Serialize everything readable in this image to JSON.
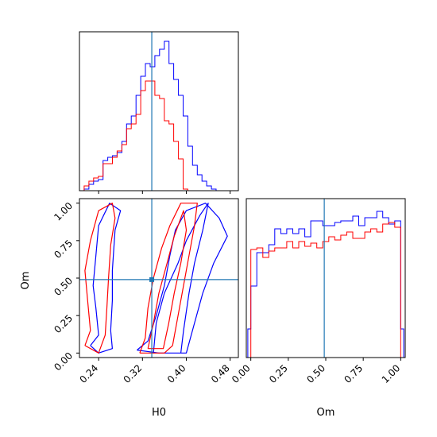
{
  "figure": {
    "type": "corner_plot",
    "parameters": [
      "H0",
      "Om"
    ],
    "truth_color": "#1f77b4",
    "series_colors": [
      "#0000ff",
      "#ff0000"
    ]
  },
  "chart_data": [
    {
      "panel": "H0-histogram",
      "type": "histogram",
      "xlabel": "",
      "xlim": [
        0.205,
        0.495
      ],
      "ylim": [
        0,
        1.0
      ],
      "bin_edges": [
        0.205,
        0.2136,
        0.2222,
        0.2308,
        0.2394,
        0.248,
        0.2566,
        0.2652,
        0.2738,
        0.2824,
        0.291,
        0.2996,
        0.3082,
        0.3168,
        0.3254,
        0.334,
        0.3426,
        0.3512,
        0.3598,
        0.3684,
        0.377,
        0.3856,
        0.3942,
        0.4028,
        0.4114,
        0.42,
        0.4286,
        0.4372,
        0.4458,
        0.4544,
        0.463,
        0.4716,
        0.4802,
        0.4888,
        0.495
      ],
      "vline": 0.337,
      "series": [
        {
          "color": "#0000ff",
          "values": [
            0.0,
            0.01,
            0.04,
            0.06,
            0.07,
            0.19,
            0.21,
            0.22,
            0.24,
            0.31,
            0.42,
            0.47,
            0.6,
            0.72,
            0.8,
            0.78,
            0.85,
            0.89,
            0.94,
            0.8,
            0.7,
            0.6,
            0.47,
            0.28,
            0.16,
            0.1,
            0.06,
            0.03,
            0.01,
            0.0,
            0.0,
            0.0,
            0.0,
            0.0
          ]
        },
        {
          "color": "#ff0000",
          "values": [
            0.0,
            0.03,
            0.06,
            0.08,
            0.09,
            0.17,
            0.17,
            0.21,
            0.25,
            0.29,
            0.39,
            0.42,
            0.48,
            0.63,
            0.69,
            0.69,
            0.6,
            0.58,
            0.44,
            0.42,
            0.31,
            0.2,
            0.01,
            0.0,
            0.0,
            0.0,
            0.0,
            0.0,
            0.0,
            0.0,
            0.0,
            0.0,
            0.0,
            0.0
          ]
        }
      ]
    },
    {
      "panel": "H0-Om-contours",
      "type": "contour",
      "xlabel": "H0",
      "ylabel": "Om",
      "xlim": [
        0.205,
        0.495
      ],
      "ylim": [
        -0.03,
        1.03
      ],
      "xticks": [
        "0.24",
        "0.32",
        "0.40",
        "0.48"
      ],
      "yticks": [
        "0.00",
        "0.25",
        "0.50",
        "0.75",
        "1.00"
      ],
      "truth": {
        "H0": 0.337,
        "Om": 0.49
      },
      "series": [
        {
          "color": "#0000ff",
          "contours": [
            [
              [
                0.225,
                0.05
              ],
              [
                0.24,
                0.12
              ],
              [
                0.235,
                0.3
              ],
              [
                0.23,
                0.45
              ],
              [
                0.235,
                0.65
              ],
              [
                0.24,
                0.85
              ],
              [
                0.26,
                1.0
              ],
              [
                0.28,
                0.95
              ],
              [
                0.27,
                0.82
              ],
              [
                0.265,
                0.55
              ],
              [
                0.265,
                0.35
              ],
              [
                0.262,
                0.15
              ],
              [
                0.265,
                0.03
              ],
              [
                0.24,
                0.0
              ],
              [
                0.225,
                0.05
              ]
            ],
            [
              [
                0.31,
                0.02
              ],
              [
                0.33,
                0.08
              ],
              [
                0.345,
                0.25
              ],
              [
                0.36,
                0.45
              ],
              [
                0.37,
                0.65
              ],
              [
                0.38,
                0.82
              ],
              [
                0.4,
                0.95
              ],
              [
                0.435,
                1.0
              ],
              [
                0.46,
                0.9
              ],
              [
                0.475,
                0.78
              ],
              [
                0.45,
                0.6
              ],
              [
                0.43,
                0.4
              ],
              [
                0.415,
                0.2
              ],
              [
                0.4,
                0.0
              ],
              [
                0.35,
                0.0
              ],
              [
                0.31,
                0.02
              ]
            ],
            [
              [
                0.34,
                0.0
              ],
              [
                0.345,
                0.2
              ],
              [
                0.36,
                0.4
              ],
              [
                0.385,
                0.6
              ],
              [
                0.4,
                0.75
              ],
              [
                0.425,
                0.92
              ],
              [
                0.44,
                1.0
              ],
              [
                0.43,
                0.82
              ],
              [
                0.415,
                0.6
              ],
              [
                0.405,
                0.4
              ],
              [
                0.395,
                0.15
              ],
              [
                0.39,
                0.0
              ]
            ]
          ]
        },
        {
          "color": "#ff0000",
          "contours": [
            [
              [
                0.215,
                0.05
              ],
              [
                0.225,
                0.15
              ],
              [
                0.22,
                0.35
              ],
              [
                0.215,
                0.55
              ],
              [
                0.225,
                0.75
              ],
              [
                0.24,
                0.95
              ],
              [
                0.265,
                1.0
              ],
              [
                0.27,
                0.9
              ],
              [
                0.262,
                0.72
              ],
              [
                0.258,
                0.5
              ],
              [
                0.255,
                0.3
              ],
              [
                0.252,
                0.12
              ],
              [
                0.24,
                0.0
              ],
              [
                0.215,
                0.05
              ]
            ],
            [
              [
                0.315,
                0.0
              ],
              [
                0.325,
                0.1
              ],
              [
                0.33,
                0.3
              ],
              [
                0.34,
                0.5
              ],
              [
                0.355,
                0.7
              ],
              [
                0.37,
                0.85
              ],
              [
                0.39,
                1.0
              ],
              [
                0.42,
                1.0
              ],
              [
                0.415,
                0.85
              ],
              [
                0.405,
                0.65
              ],
              [
                0.395,
                0.45
              ],
              [
                0.385,
                0.25
              ],
              [
                0.375,
                0.05
              ],
              [
                0.36,
                0.0
              ],
              [
                0.315,
                0.0
              ]
            ],
            [
              [
                0.33,
                0.03
              ],
              [
                0.34,
                0.2
              ],
              [
                0.35,
                0.4
              ],
              [
                0.365,
                0.6
              ],
              [
                0.378,
                0.78
              ],
              [
                0.395,
                0.95
              ],
              [
                0.4,
                0.82
              ],
              [
                0.39,
                0.6
              ],
              [
                0.378,
                0.4
              ],
              [
                0.368,
                0.2
              ],
              [
                0.358,
                0.03
              ],
              [
                0.33,
                0.03
              ]
            ]
          ]
        }
      ]
    },
    {
      "panel": "Om-histogram",
      "type": "histogram",
      "xlabel": "Om",
      "xlim": [
        -0.03,
        1.03
      ],
      "ylim": [
        0,
        1.0
      ],
      "xticks": [
        "0.00",
        "0.25",
        "0.50",
        "0.75",
        "1.00"
      ],
      "bin_edges": [
        -0.02,
        0.0,
        0.04,
        0.08,
        0.12,
        0.16,
        0.2,
        0.24,
        0.28,
        0.32,
        0.36,
        0.4,
        0.44,
        0.48,
        0.52,
        0.56,
        0.6,
        0.64,
        0.68,
        0.72,
        0.76,
        0.8,
        0.84,
        0.88,
        0.92,
        0.96,
        1.0,
        1.02
      ],
      "vline": 0.49,
      "series": [
        {
          "color": "#0000ff",
          "values": [
            0.18,
            0.45,
            0.66,
            0.66,
            0.71,
            0.81,
            0.78,
            0.81,
            0.78,
            0.81,
            0.76,
            0.86,
            0.86,
            0.83,
            0.83,
            0.85,
            0.86,
            0.86,
            0.89,
            0.83,
            0.88,
            0.88,
            0.92,
            0.88,
            0.84,
            0.86,
            0.18
          ]
        },
        {
          "color": "#ff0000",
          "values": [
            0.0,
            0.68,
            0.69,
            0.63,
            0.67,
            0.69,
            0.69,
            0.73,
            0.69,
            0.73,
            0.7,
            0.72,
            0.69,
            0.73,
            0.76,
            0.74,
            0.77,
            0.79,
            0.75,
            0.75,
            0.79,
            0.81,
            0.79,
            0.84,
            0.85,
            0.82,
            0.0
          ]
        }
      ]
    }
  ]
}
